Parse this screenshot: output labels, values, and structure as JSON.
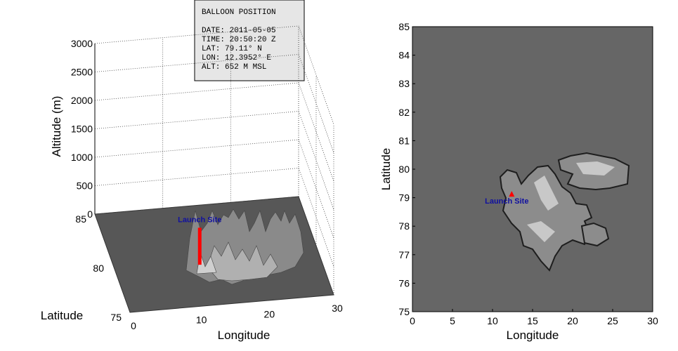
{
  "chart_data": [
    {
      "type": "surface3d",
      "xlabel": "Longitude",
      "ylabel": "Latitude",
      "zlabel": "Altitude (m)",
      "xlim": [
        0,
        30
      ],
      "xticks": [
        0,
        10,
        20,
        30
      ],
      "ylim": [
        75,
        85
      ],
      "yticks": [
        75,
        80,
        85
      ],
      "zlim": [
        0,
        3000
      ],
      "zticks": [
        0,
        500,
        1000,
        1500,
        2000,
        2500,
        3000
      ],
      "annotation": "Launch Site",
      "grid": true,
      "series": [
        {
          "color": "#ff0000",
          "x": [
            12.3952
          ],
          "y": [
            79.11
          ],
          "z": [
            652
          ]
        }
      ]
    },
    {
      "type": "map",
      "xlabel": "Longitude",
      "ylabel": "Latitude",
      "xlim": [
        0,
        30
      ],
      "xticks": [
        0,
        5,
        10,
        15,
        20,
        25,
        30
      ],
      "ylim": [
        75,
        85
      ],
      "yticks": [
        75,
        76,
        77,
        78,
        79,
        80,
        81,
        82,
        83,
        84,
        85
      ],
      "annotation": "Launch Site",
      "series": [
        {
          "color": "#ff0000",
          "x": [
            12.3952
          ],
          "y": [
            79.11
          ]
        }
      ]
    }
  ],
  "info_box": {
    "title": "BALLOON POSITION",
    "lines": [
      "DATE:  2011-05-05",
      "TIME:  20:50:20 Z",
      "LAT:   79.11° N",
      "LON:   12.3952° E",
      "ALT:   652 M MSL"
    ]
  }
}
